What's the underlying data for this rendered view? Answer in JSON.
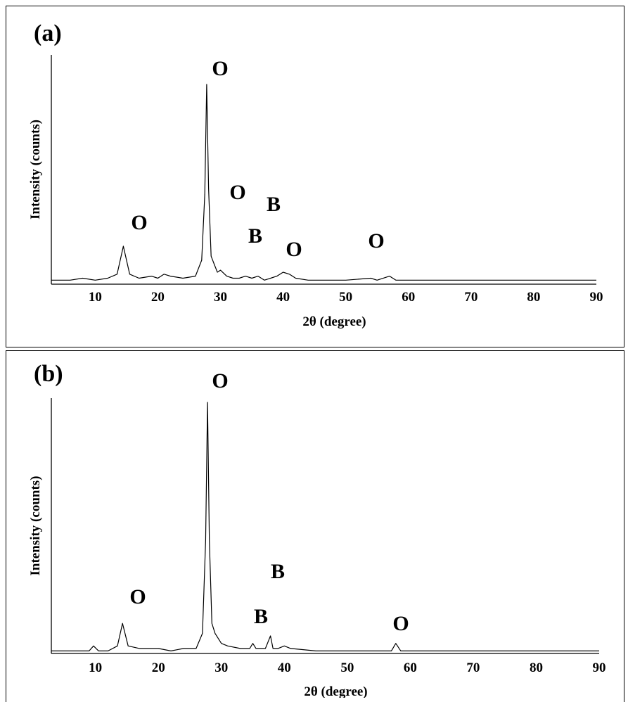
{
  "chart_data": [
    {
      "panel_label": "(a)",
      "type": "line",
      "xlabel": "2θ (degree)",
      "ylabel": "Intensity (counts)",
      "xlim": [
        3,
        90
      ],
      "ylim": [
        0,
        100
      ],
      "xticks": [
        10,
        20,
        30,
        40,
        50,
        60,
        70,
        80,
        90
      ],
      "grid": false,
      "series": [
        {
          "x": [
            3,
            6,
            8,
            10,
            12,
            13.5,
            14.5,
            15.5,
            17,
            19,
            20,
            21,
            22,
            24,
            26,
            27,
            27.5,
            27.8,
            28.1,
            28.5,
            29,
            29.5,
            30,
            31,
            32,
            33,
            34,
            35,
            36,
            37,
            38,
            39,
            40,
            41,
            42,
            44,
            46,
            50,
            54,
            55,
            57,
            58,
            60,
            65,
            70,
            75,
            80,
            85,
            90
          ],
          "y": [
            2,
            2,
            3,
            2,
            3,
            5,
            19,
            5,
            3,
            4,
            3,
            5,
            4,
            3,
            4,
            12,
            45,
            100,
            48,
            14,
            10,
            6,
            7,
            4,
            3,
            3,
            4,
            3,
            4,
            2,
            3,
            4,
            6,
            5,
            3,
            2,
            2,
            2,
            3,
            2,
            4,
            2,
            2,
            2,
            2,
            2,
            2,
            2,
            2
          ]
        }
      ],
      "peak_labels": [
        {
          "text": "O",
          "x": 14.5
        },
        {
          "text": "O",
          "x": 27.8
        },
        {
          "text": "O",
          "x": 30.8
        },
        {
          "text": "B",
          "x": 33.5
        },
        {
          "text": "B",
          "x": 36.3
        },
        {
          "text": "O",
          "x": 40.5
        },
        {
          "text": "O",
          "x": 54.5
        }
      ]
    },
    {
      "panel_label": "(b)",
      "type": "line",
      "xlabel": "2θ (degree)",
      "ylabel": "Intensity (counts)",
      "xlim": [
        3,
        90
      ],
      "ylim": [
        0,
        100
      ],
      "xticks": [
        10,
        20,
        30,
        40,
        50,
        60,
        70,
        80,
        90
      ],
      "grid": false,
      "series": [
        {
          "x": [
            3,
            6,
            9,
            9.7,
            10.5,
            12,
            13.5,
            14.3,
            15.2,
            17,
            19,
            20,
            22,
            24,
            26,
            27,
            27.5,
            27.8,
            28.1,
            28.5,
            29,
            29.5,
            30,
            31,
            33,
            34.5,
            35,
            35.5,
            37,
            37.8,
            38.2,
            39,
            40,
            41,
            45,
            50,
            55,
            57,
            57.7,
            58.5,
            60,
            65,
            70,
            75,
            80,
            85,
            90
          ],
          "y": [
            1,
            1,
            1,
            3,
            1,
            1,
            3,
            12,
            3,
            2,
            2,
            2,
            1,
            2,
            2,
            8,
            45,
            100,
            45,
            12,
            8,
            6,
            4,
            3,
            2,
            2,
            4,
            2,
            2,
            7,
            2,
            2,
            3,
            2,
            1,
            1,
            1,
            1,
            4,
            1,
            1,
            1,
            1,
            1,
            1,
            1,
            1
          ]
        }
      ],
      "peak_labels": [
        {
          "text": "O",
          "x": 14.2
        },
        {
          "text": "O",
          "x": 27.8
        },
        {
          "text": "B",
          "x": 34.5
        },
        {
          "text": "B",
          "x": 37.5
        },
        {
          "text": "O",
          "x": 57.5
        }
      ]
    }
  ]
}
